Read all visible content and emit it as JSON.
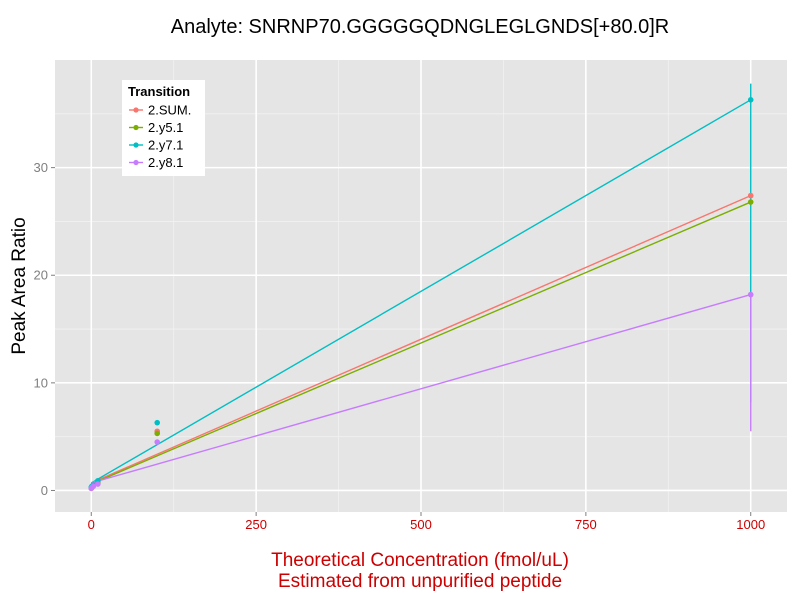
{
  "chart_data": {
    "type": "line",
    "title": "Analyte: SNRNP70.GGGGGQDNGLEGLGNDS[+80.0]R",
    "xlabel_line1": "Theoretical Concentration (fmol/uL)",
    "xlabel_line2": "Estimated from unpurified peptide",
    "ylabel": "Peak Area Ratio",
    "xlim": [
      -55,
      1055
    ],
    "ylim": [
      -2,
      40
    ],
    "x_ticks": [
      0,
      250,
      500,
      750,
      1000
    ],
    "y_ticks": [
      0,
      10,
      20,
      30
    ],
    "x_tick_labels": [
      "0",
      "250",
      "500",
      "750",
      "1000"
    ],
    "y_tick_labels": [
      "0",
      "10",
      "20",
      "30"
    ],
    "grid": true,
    "legend": {
      "title": "Transition",
      "position": "top-left"
    },
    "series": [
      {
        "name": "2.SUM.",
        "color": "#F8766D",
        "fit": [
          [
            0,
            0.7
          ],
          [
            1000,
            27.4
          ]
        ],
        "points": [
          [
            0,
            0.2
          ],
          [
            1,
            0.3
          ],
          [
            3,
            0.4
          ],
          [
            10,
            0.8
          ],
          [
            100,
            5.5
          ],
          [
            1000,
            27.4
          ]
        ],
        "errorbars": []
      },
      {
        "name": "2.y5.1",
        "color": "#7CAE00",
        "fit": [
          [
            0,
            0.6
          ],
          [
            1000,
            26.8
          ]
        ],
        "points": [
          [
            0,
            0.2
          ],
          [
            1,
            0.3
          ],
          [
            3,
            0.4
          ],
          [
            10,
            0.7
          ],
          [
            100,
            5.3
          ],
          [
            1000,
            26.8
          ]
        ],
        "errorbars": []
      },
      {
        "name": "2.y7.1",
        "color": "#00BFC4",
        "fit": [
          [
            0,
            0.7
          ],
          [
            1000,
            36.3
          ]
        ],
        "points": [
          [
            0,
            0.3
          ],
          [
            1,
            0.4
          ],
          [
            3,
            0.5
          ],
          [
            10,
            0.9
          ],
          [
            100,
            6.3
          ],
          [
            1000,
            36.3
          ]
        ],
        "errorbars": [
          [
            1000,
            8.2,
            37.8
          ]
        ]
      },
      {
        "name": "2.y8.1",
        "color": "#C77CFF",
        "fit": [
          [
            0,
            0.7
          ],
          [
            1000,
            18.2
          ]
        ],
        "points": [
          [
            0,
            0.2
          ],
          [
            1,
            0.3
          ],
          [
            3,
            0.4
          ],
          [
            10,
            0.6
          ],
          [
            100,
            4.5
          ],
          [
            1000,
            18.2
          ]
        ],
        "errorbars": [
          [
            1000,
            5.5,
            18.3
          ]
        ]
      }
    ]
  },
  "style": {
    "panel_bg": "#E5E5E5",
    "grid_major": "#FFFFFF",
    "grid_minor": "#F2F2F2",
    "tick_label_x_color": "#CC0000",
    "tick_label_y_color": "#7F7F7F",
    "xlabel_color": "#CC0000",
    "ylabel_color": "#000000"
  }
}
